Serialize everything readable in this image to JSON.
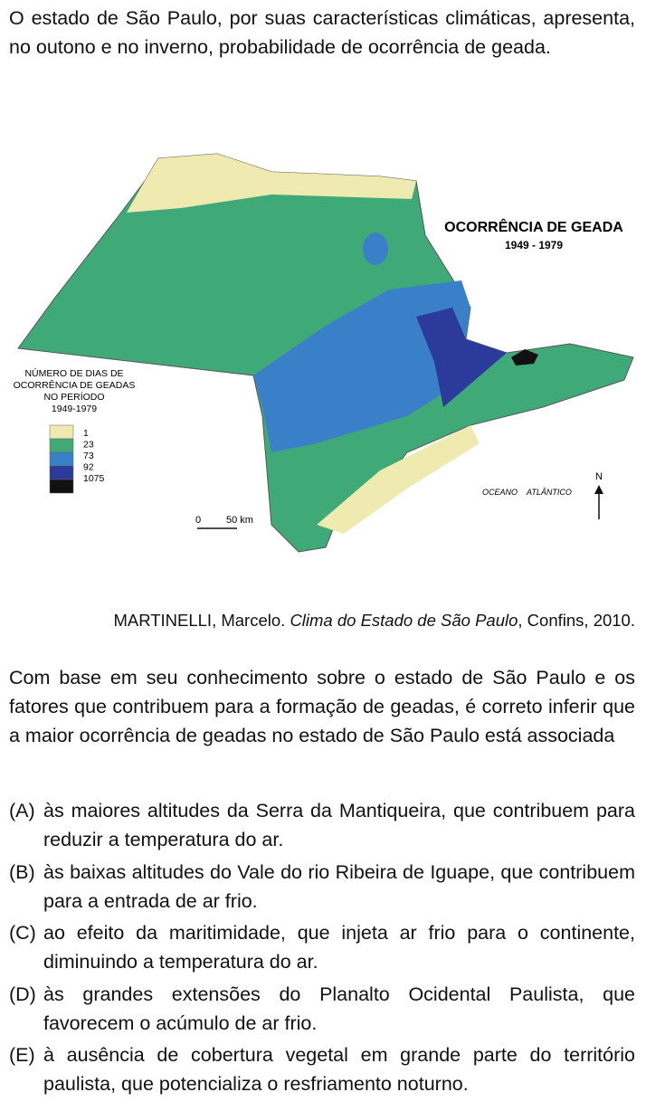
{
  "intro": "O estado de São Paulo, por suas características climáticas, apresenta, no outono e no inverno, probabilidade de ocorrência de geada.",
  "map": {
    "title": "OCORRÊNCIA DE GEADA",
    "period": "1949 - 1979",
    "legend": {
      "title_lines": [
        "NÚMERO DE DIAS DE",
        "OCORRÊNCIA DE GEADAS",
        "NO PERÍODO",
        "1949-1979"
      ],
      "items": [
        {
          "label": "1",
          "color": "#eeeab0"
        },
        {
          "label": "23",
          "color": "#3faa78"
        },
        {
          "label": "73",
          "color": "#3a80c8"
        },
        {
          "label": "92",
          "color": "#2c3a9c"
        },
        {
          "label": "1075",
          "color": "#111111"
        }
      ]
    },
    "scale": {
      "start": "0",
      "end": "50 km"
    },
    "ocean": [
      "OCEANO",
      "ATLÂNTICO"
    ],
    "north": "N"
  },
  "citation": {
    "author": "MARTINELLI, Marcelo. ",
    "work": "Clima do Estado de São Paulo",
    "rest": ", Confins, 2010."
  },
  "stem": "Com base em seu conhecimento sobre o estado de São Paulo e os fatores que contribuem para a formação de geadas, é correto inferir que a maior ocorrência de geadas no estado de São Paulo está associada",
  "options": [
    {
      "letter": "(A)",
      "text": "às maiores altitudes da Serra da Mantiqueira, que contribuem para reduzir a temperatura do ar."
    },
    {
      "letter": "(B)",
      "text": "às baixas altitudes do Vale do rio Ribeira de Iguape, que contribuem para a entrada de ar frio."
    },
    {
      "letter": "(C)",
      "text": "ao efeito da maritimidade, que injeta ar frio para o continente, diminuindo a temperatura do ar."
    },
    {
      "letter": "(D)",
      "text": "às grandes extensões do Planalto Ocidental Paulista, que favorecem o acúmulo de ar frio."
    },
    {
      "letter": "(E)",
      "text": "à ausência de cobertura vegetal em grande parte do território paulista, que potencializa o resfriamento noturno."
    }
  ]
}
